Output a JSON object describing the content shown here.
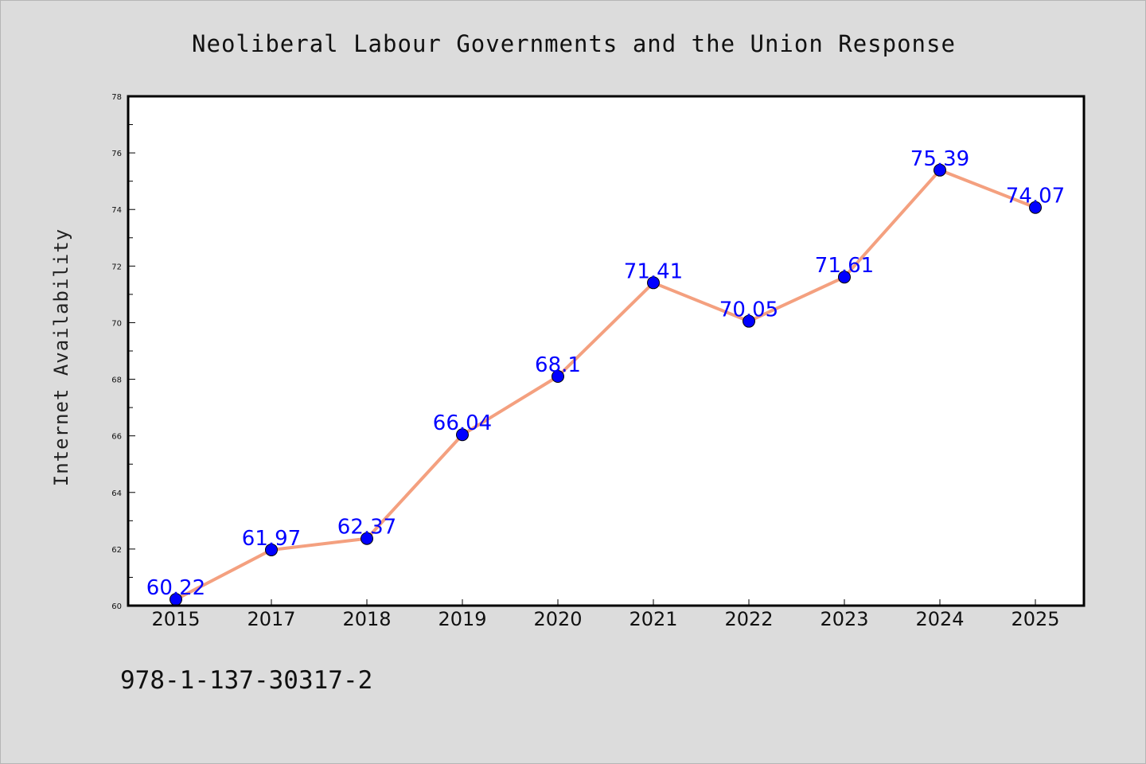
{
  "chart_data": {
    "type": "line",
    "title": "Neoliberal Labour Governments and the Union Response",
    "xlabel": "",
    "ylabel": "Internet Availability",
    "categories": [
      "2015",
      "2017",
      "2018",
      "2019",
      "2020",
      "2021",
      "2022",
      "2023",
      "2024",
      "2025"
    ],
    "series": [
      {
        "values": [
          60.22,
          61.97,
          62.37,
          66.04,
          68.1,
          71.41,
          70.05,
          71.61,
          75.39,
          74.07
        ],
        "data_labels": [
          "60.22",
          "61.97",
          "62.37",
          "66.04",
          "68.1",
          "71.41",
          "70.05",
          "71.61",
          "75.39",
          "74.07"
        ],
        "line_color": "#f4a07f",
        "marker_color": "#0000ff",
        "label_color": "#0000ff"
      }
    ],
    "ylim": [
      60,
      78
    ],
    "yticks": [
      "60",
      "62",
      "64",
      "66",
      "68",
      "70",
      "72",
      "74",
      "76",
      "78"
    ],
    "grid": false,
    "legend": "none"
  },
  "footer_text": "978-1-137-30317-2",
  "colors": {
    "background": "#dcdcdc",
    "plot_background": "#ffffff",
    "axes": "#000000"
  }
}
